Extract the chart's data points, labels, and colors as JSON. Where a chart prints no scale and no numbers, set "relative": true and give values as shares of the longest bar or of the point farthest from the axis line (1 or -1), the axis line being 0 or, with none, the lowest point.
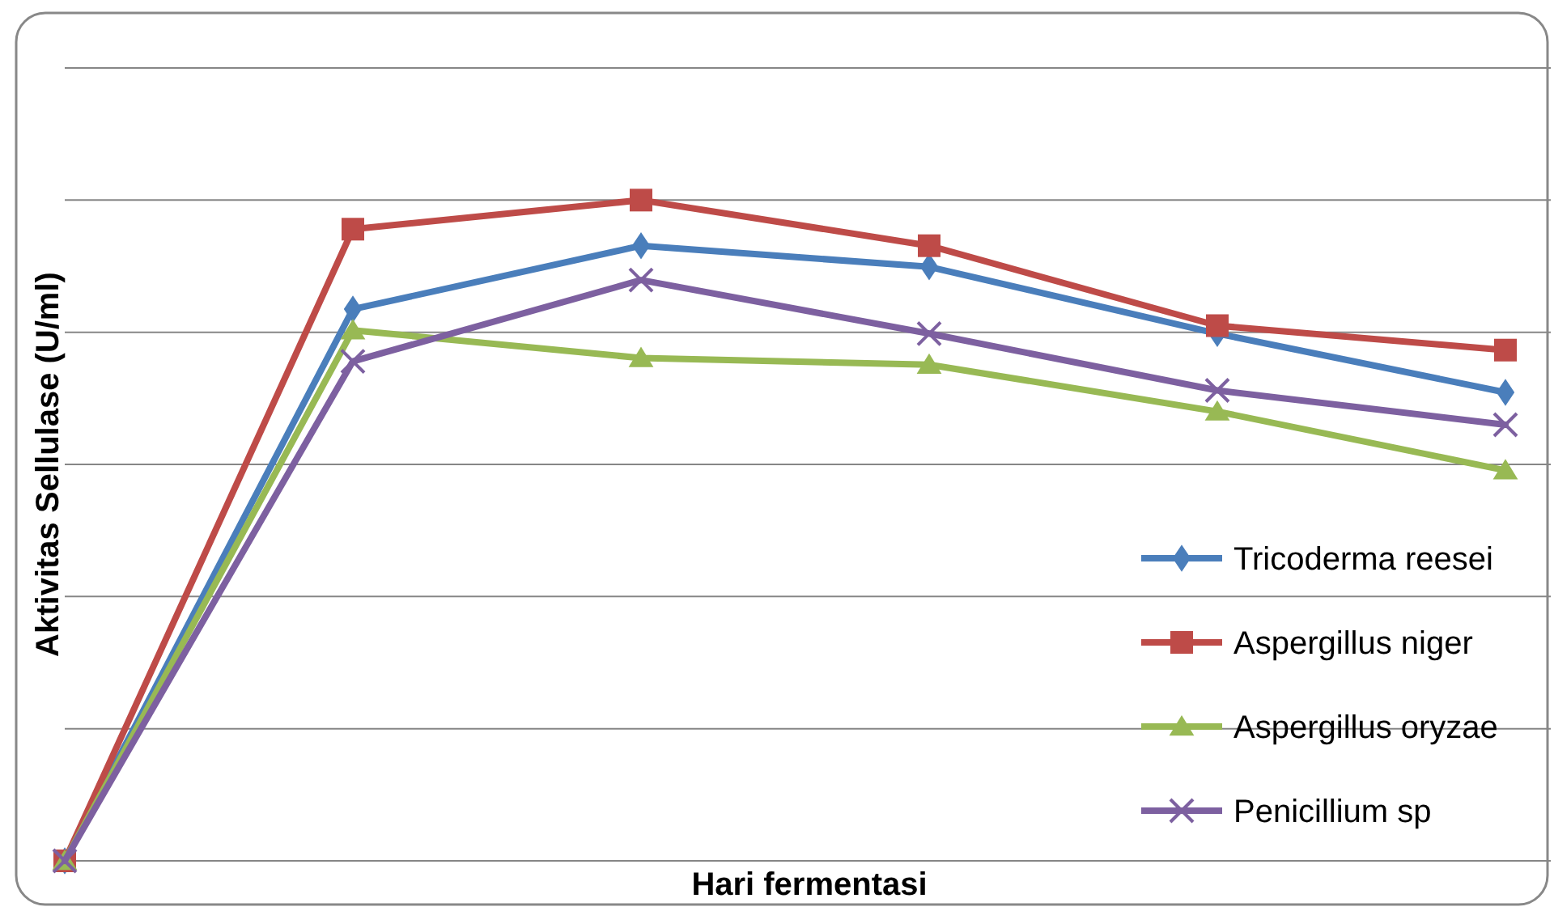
{
  "chart_data": {
    "type": "line",
    "relative": true,
    "xlabel": "Hari fermentasi",
    "ylabel": "Aktivitas Sellulase (U/ml)",
    "categories": [
      null,
      null,
      null,
      null,
      null,
      null
    ],
    "grid": true,
    "legend": "right",
    "line_style": "solid",
    "series": [
      {
        "name": "Tricoderma reesei",
        "color": "#4a7ebb",
        "marker": "diamond",
        "values": [
          0,
          0.835,
          0.931,
          0.899,
          0.798,
          0.709
        ]
      },
      {
        "name": "Aspergillus niger",
        "color": "#be4b48",
        "marker": "square",
        "values": [
          0,
          0.956,
          1,
          0.931,
          0.81,
          0.773
        ]
      },
      {
        "name": "Aspergillus oryzae",
        "color": "#98b954",
        "marker": "triangle",
        "values": [
          0,
          0.803,
          0.761,
          0.751,
          0.68,
          0.591
        ]
      },
      {
        "name": "Penicillium sp",
        "color": "#7d60a0",
        "marker": "cross",
        "values": [
          0,
          0.756,
          0.879,
          0.798,
          0.712,
          0.66
        ]
      }
    ]
  }
}
